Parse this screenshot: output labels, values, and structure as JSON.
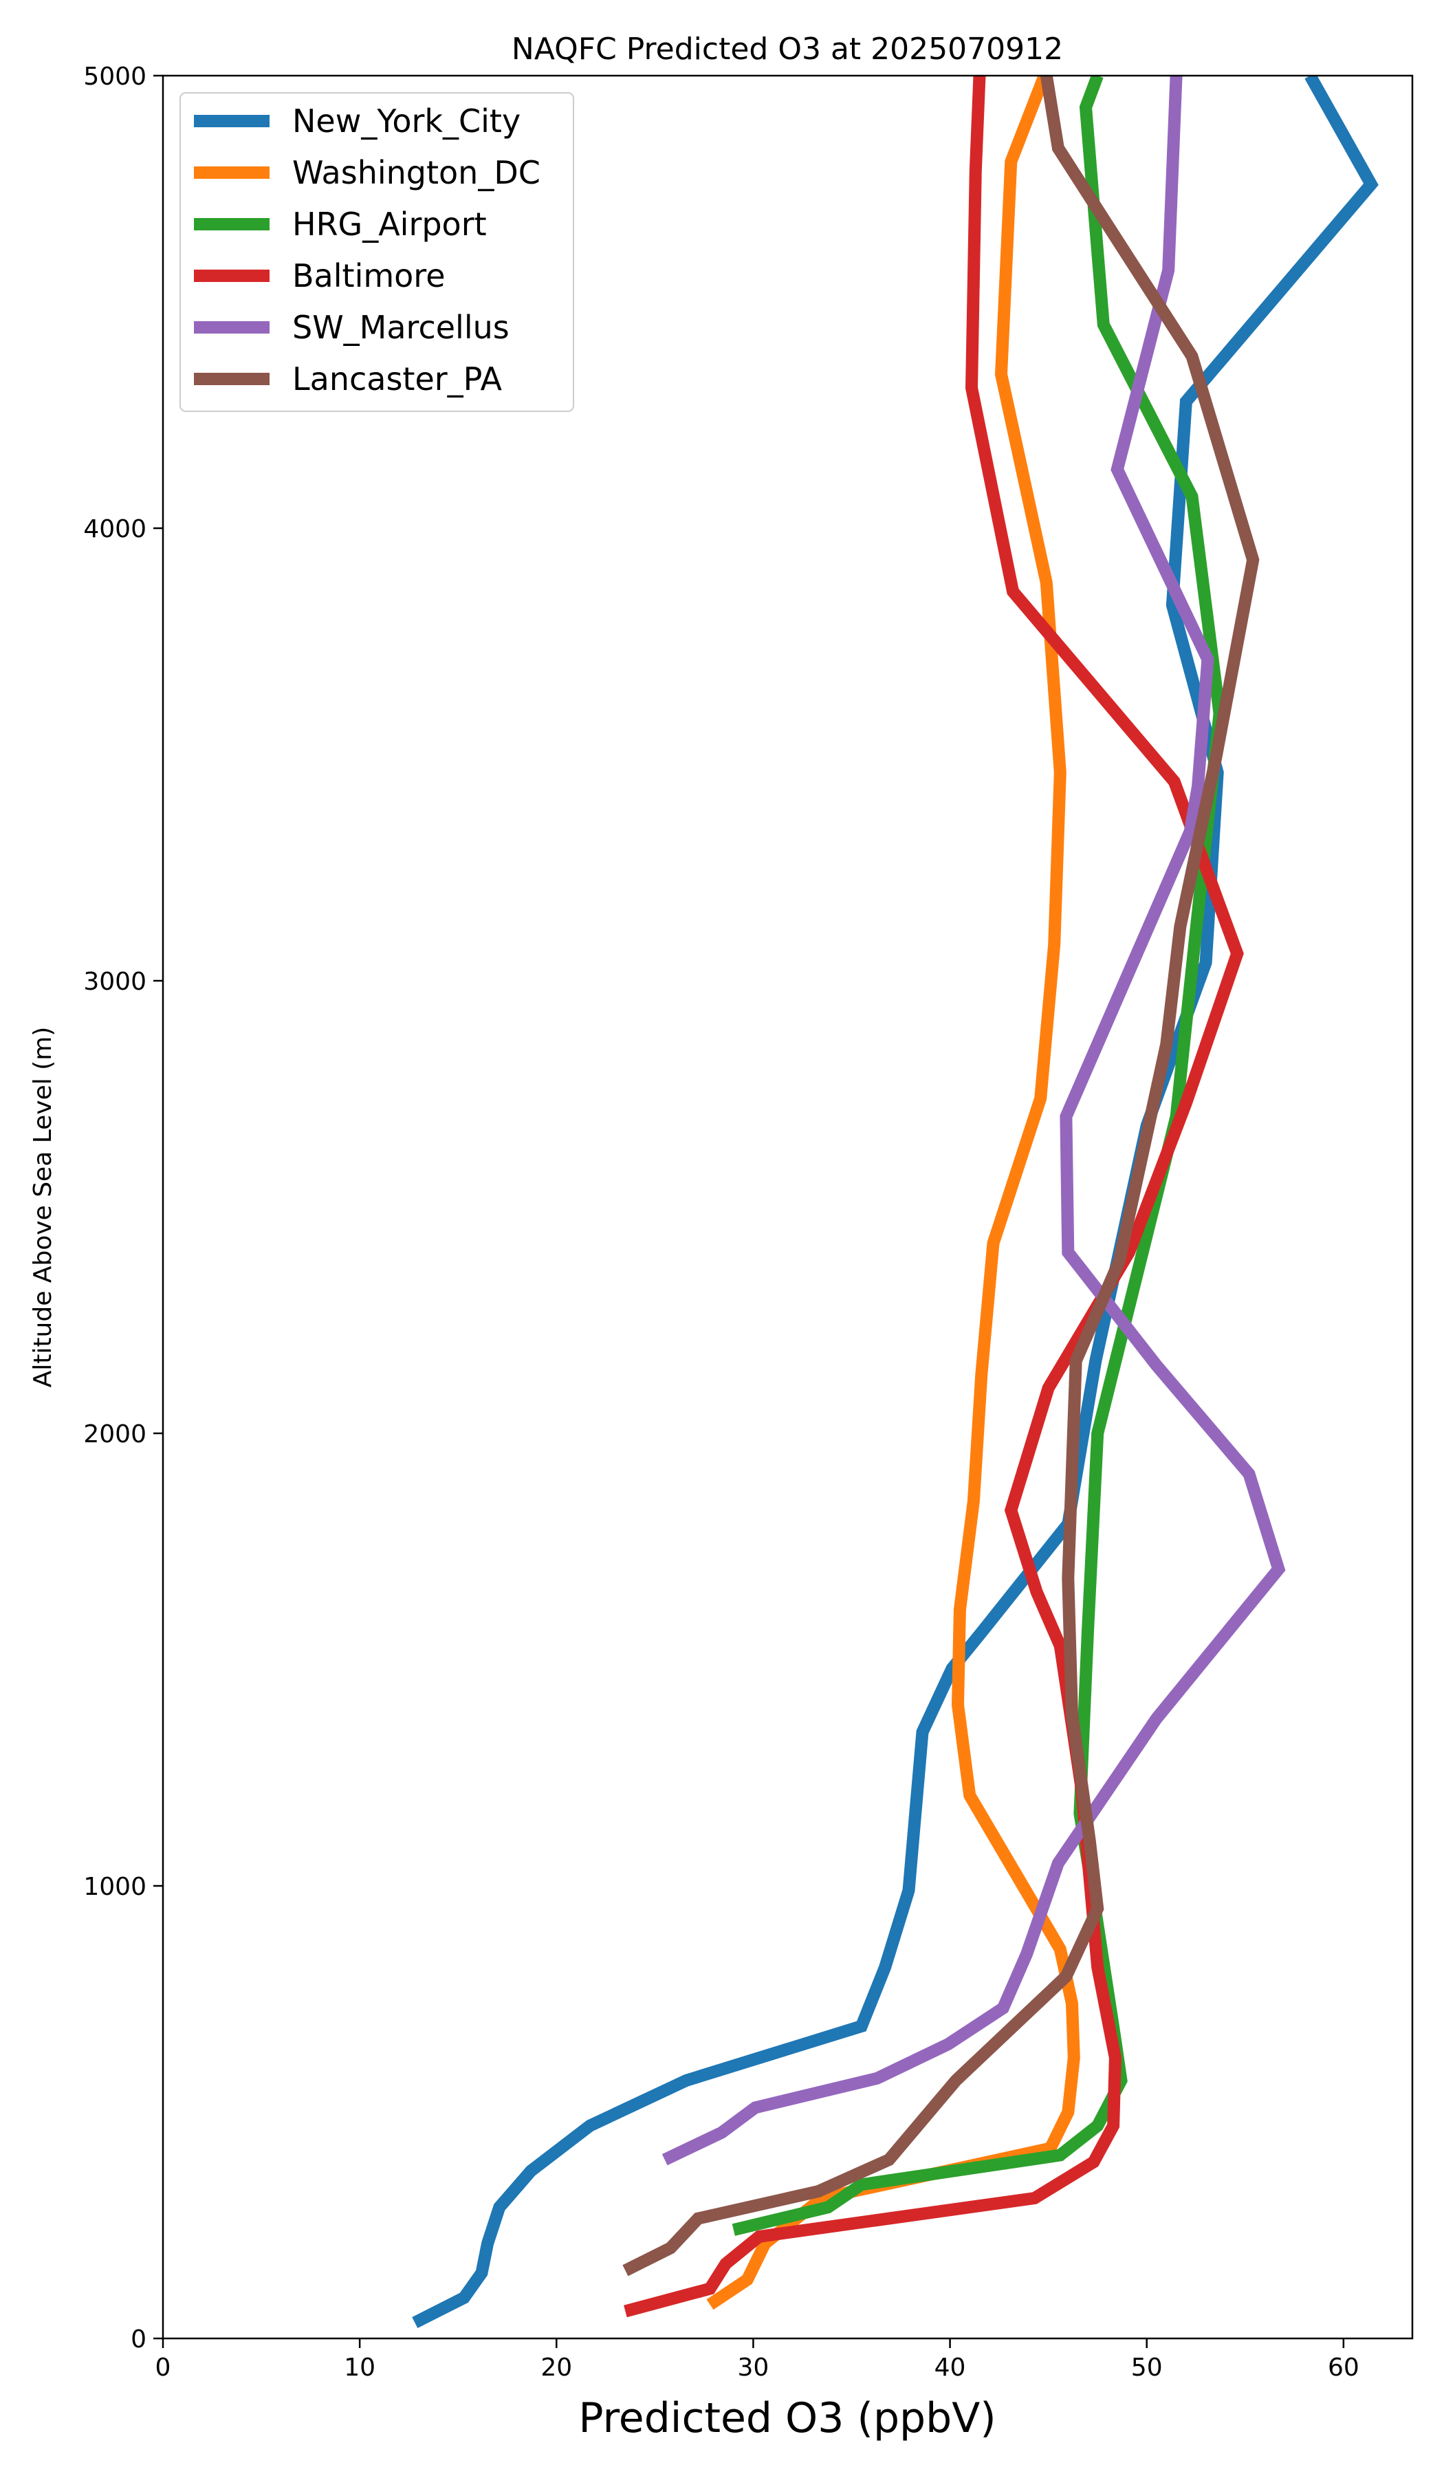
{
  "chart_data": {
    "type": "line",
    "title": "NAQFC Predicted O3 at 2025070912",
    "xlabel": "Predicted O3 (ppbV)",
    "ylabel": "Altitude Above Sea Level (m)",
    "xlim": [
      0,
      63.5
    ],
    "ylim": [
      0,
      5000
    ],
    "xticks": [
      0,
      10,
      20,
      30,
      40,
      50,
      60
    ],
    "yticks": [
      0,
      1000,
      2000,
      3000,
      4000,
      5000
    ],
    "grid": false,
    "legend": "top-left",
    "series": [
      {
        "name": "New_York_City",
        "color": "#1f77b4",
        "points": [
          [
            12.8,
            35
          ],
          [
            15.3,
            90
          ],
          [
            16.2,
            145
          ],
          [
            16.5,
            210
          ],
          [
            17.1,
            290
          ],
          [
            18.7,
            370
          ],
          [
            21.7,
            470
          ],
          [
            26.6,
            570
          ],
          [
            35.5,
            690
          ],
          [
            36.7,
            820
          ],
          [
            37.9,
            990
          ],
          [
            38.6,
            1340
          ],
          [
            40.1,
            1480
          ],
          [
            41.6,
            1560
          ],
          [
            46.0,
            1800
          ],
          [
            47.4,
            2160
          ],
          [
            50.0,
            2680
          ],
          [
            53.0,
            3040
          ],
          [
            53.6,
            3460
          ],
          [
            51.3,
            3830
          ],
          [
            52.0,
            4280
          ],
          [
            61.4,
            4760
          ],
          [
            58.3,
            5000
          ]
        ]
      },
      {
        "name": "Washington_DC",
        "color": "#ff7f0e",
        "points": [
          [
            27.8,
            75
          ],
          [
            29.7,
            130
          ],
          [
            30.6,
            210
          ],
          [
            33.5,
            310
          ],
          [
            45.1,
            420
          ],
          [
            46.0,
            500
          ],
          [
            46.3,
            620
          ],
          [
            46.2,
            740
          ],
          [
            45.6,
            860
          ],
          [
            41.0,
            1200
          ],
          [
            40.4,
            1400
          ],
          [
            40.5,
            1610
          ],
          [
            41.2,
            1850
          ],
          [
            41.6,
            2130
          ],
          [
            42.2,
            2420
          ],
          [
            44.6,
            2740
          ],
          [
            45.3,
            3080
          ],
          [
            45.6,
            3460
          ],
          [
            44.9,
            3880
          ],
          [
            42.6,
            4340
          ],
          [
            43.1,
            4810
          ],
          [
            44.8,
            5000
          ]
        ]
      },
      {
        "name": "HRG_Airport",
        "color": "#2ca02c",
        "points": [
          [
            29.0,
            240
          ],
          [
            33.8,
            290
          ],
          [
            35.5,
            340
          ],
          [
            45.6,
            405
          ],
          [
            47.5,
            470
          ],
          [
            48.7,
            570
          ],
          [
            48.4,
            660
          ],
          [
            47.2,
            1000
          ],
          [
            46.6,
            1160
          ],
          [
            47.0,
            1560
          ],
          [
            47.5,
            2000
          ],
          [
            51.5,
            2700
          ],
          [
            52.5,
            3110
          ],
          [
            53.7,
            3590
          ],
          [
            52.3,
            4070
          ],
          [
            47.8,
            4450
          ],
          [
            46.9,
            4930
          ],
          [
            47.5,
            5000
          ]
        ]
      },
      {
        "name": "Baltimore",
        "color": "#d62728",
        "points": [
          [
            23.5,
            60
          ],
          [
            27.8,
            110
          ],
          [
            28.6,
            165
          ],
          [
            30.3,
            225
          ],
          [
            44.3,
            310
          ],
          [
            47.3,
            390
          ],
          [
            48.3,
            470
          ],
          [
            48.4,
            620
          ],
          [
            47.5,
            820
          ],
          [
            46.7,
            1210
          ],
          [
            45.6,
            1530
          ],
          [
            44.4,
            1650
          ],
          [
            43.1,
            1830
          ],
          [
            45.0,
            2100
          ],
          [
            49.1,
            2400
          ],
          [
            52.0,
            2730
          ],
          [
            54.6,
            3060
          ],
          [
            51.4,
            3440
          ],
          [
            43.2,
            3860
          ],
          [
            41.1,
            4310
          ],
          [
            41.3,
            4790
          ],
          [
            41.5,
            5000
          ]
        ]
      },
      {
        "name": "SW_Marcellus",
        "color": "#9467bd",
        "points": [
          [
            25.5,
            395
          ],
          [
            28.4,
            455
          ],
          [
            30.1,
            510
          ],
          [
            36.3,
            575
          ],
          [
            39.9,
            650
          ],
          [
            42.7,
            730
          ],
          [
            43.9,
            850
          ],
          [
            45.5,
            1050
          ],
          [
            50.5,
            1370
          ],
          [
            56.7,
            1700
          ],
          [
            55.2,
            1910
          ],
          [
            50.5,
            2150
          ],
          [
            46.0,
            2400
          ],
          [
            45.9,
            2700
          ],
          [
            48.9,
            3000
          ],
          [
            52.2,
            3330
          ],
          [
            52.6,
            3430
          ],
          [
            53.1,
            3710
          ],
          [
            48.5,
            4130
          ],
          [
            51.1,
            4570
          ],
          [
            51.5,
            5000
          ]
        ]
      },
      {
        "name": "Lancaster_PA",
        "color": "#8c564b",
        "points": [
          [
            23.5,
            150
          ],
          [
            25.8,
            200
          ],
          [
            27.2,
            265
          ],
          [
            33.3,
            325
          ],
          [
            36.9,
            395
          ],
          [
            40.3,
            570
          ],
          [
            45.9,
            800
          ],
          [
            47.5,
            950
          ],
          [
            47.1,
            1100
          ],
          [
            46.2,
            1380
          ],
          [
            46.0,
            1680
          ],
          [
            46.4,
            2160
          ],
          [
            48.6,
            2380
          ],
          [
            51.0,
            2860
          ],
          [
            51.7,
            3120
          ],
          [
            53.5,
            3490
          ],
          [
            55.4,
            3930
          ],
          [
            52.3,
            4380
          ],
          [
            45.5,
            4840
          ],
          [
            44.9,
            5000
          ]
        ]
      }
    ]
  }
}
